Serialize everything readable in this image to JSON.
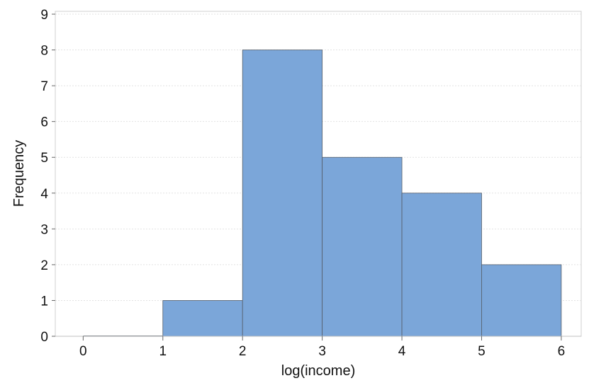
{
  "chart_data": {
    "type": "bar",
    "title": "",
    "xlabel": "log(income)",
    "ylabel": "Frequency",
    "xlim": [
      -0.35,
      6.25
    ],
    "ylim": [
      0,
      9
    ],
    "x_ticks": [
      "0",
      "1",
      "2",
      "3",
      "4",
      "5",
      "6"
    ],
    "y_ticks": [
      "0",
      "1",
      "2",
      "3",
      "4",
      "5",
      "6",
      "7",
      "8",
      "9"
    ],
    "bins": [
      {
        "start": 0,
        "end": 1,
        "count": 0
      },
      {
        "start": 1,
        "end": 2,
        "count": 1
      },
      {
        "start": 2,
        "end": 3,
        "count": 8
      },
      {
        "start": 3,
        "end": 4,
        "count": 5
      },
      {
        "start": 4,
        "end": 5,
        "count": 4
      },
      {
        "start": 5,
        "end": 6,
        "count": 2
      }
    ],
    "bar_color": "#7ba6d9",
    "grid": "horizontal-dashed",
    "legend": "none"
  }
}
